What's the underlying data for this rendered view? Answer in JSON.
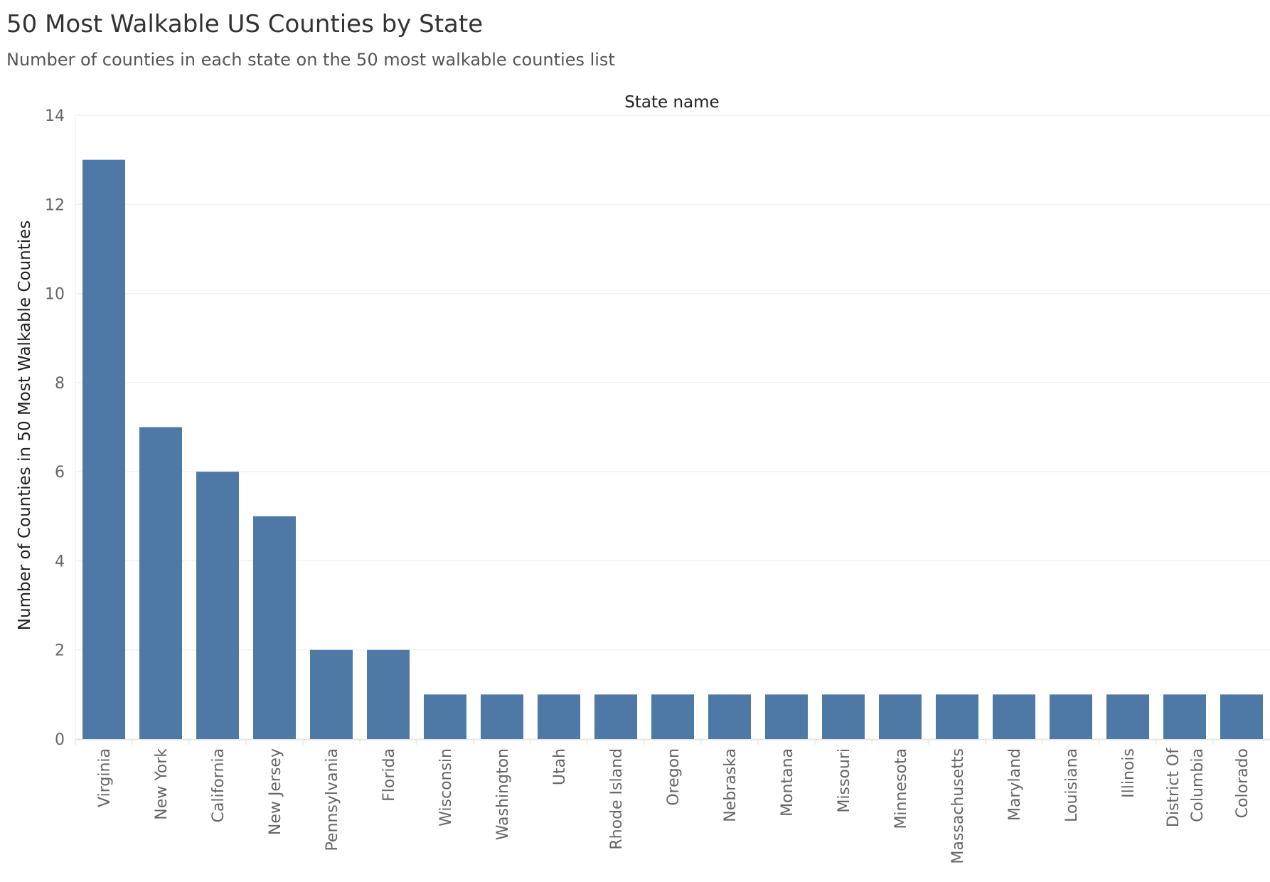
{
  "header": {
    "title": "50 Most Walkable US Counties by State",
    "subtitle": "Number of counties in each state on the 50 most walkable counties list"
  },
  "chart_data": {
    "type": "bar",
    "title": "50 Most Walkable US Counties by State",
    "subtitle": "Number of counties in each state on the 50 most walkable counties list",
    "xlabel": "State name",
    "ylabel": "Number of Counties in 50 Most Walkable Counties",
    "categories": [
      "Virginia",
      "New York",
      "California",
      "New Jersey",
      "Pennsylvania",
      "Florida",
      "Wisconsin",
      "Washington",
      "Utah",
      "Rhode Island",
      "Oregon",
      "Nebraska",
      "Montana",
      "Missouri",
      "Minnesota",
      "Massachusetts",
      "Maryland",
      "Louisiana",
      "Illinois",
      "District Of Columbia",
      "Colorado"
    ],
    "category_label_lines": [
      [
        "Virginia"
      ],
      [
        "New York"
      ],
      [
        "California"
      ],
      [
        "New Jersey"
      ],
      [
        "Pennsylvania"
      ],
      [
        "Florida"
      ],
      [
        "Wisconsin"
      ],
      [
        "Washington"
      ],
      [
        "Utah"
      ],
      [
        "Rhode Island"
      ],
      [
        "Oregon"
      ],
      [
        "Nebraska"
      ],
      [
        "Montana"
      ],
      [
        "Missouri"
      ],
      [
        "Minnesota"
      ],
      [
        "Massachusetts"
      ],
      [
        "Maryland"
      ],
      [
        "Louisiana"
      ],
      [
        "Illinois"
      ],
      [
        "District Of",
        "Columbia"
      ],
      [
        "Colorado"
      ]
    ],
    "values": [
      13,
      7,
      6,
      5,
      2,
      2,
      1,
      1,
      1,
      1,
      1,
      1,
      1,
      1,
      1,
      1,
      1,
      1,
      1,
      1,
      1
    ],
    "yticks": [
      "0",
      "2",
      "4",
      "6",
      "8",
      "10",
      "12",
      "14"
    ],
    "ylim": [
      0,
      14
    ],
    "grid": true,
    "bar_color": "#4e79a7"
  }
}
